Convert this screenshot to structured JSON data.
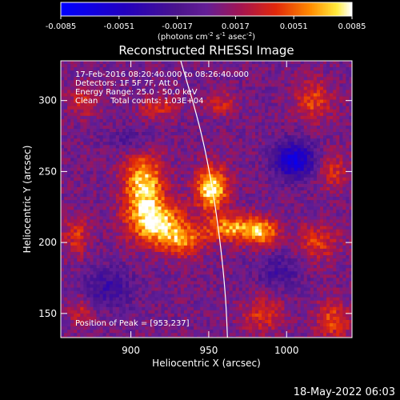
{
  "chart_data": {
    "type": "heatmap",
    "title": "Reconstructed RHESSI Image",
    "xlabel": "Heliocentric X (arcsec)",
    "ylabel": "Heliocentric Y (arcsec)",
    "xlim": [
      855,
      1042
    ],
    "ylim": [
      133,
      328
    ],
    "xticks": [
      900,
      950,
      1000
    ],
    "yticks": [
      150,
      200,
      250,
      300
    ],
    "grid": false,
    "colorbar": {
      "placement": "top",
      "range": [
        -0.0085,
        0.0085
      ],
      "tick_labels": [
        "-0.0085",
        "-0.0051",
        "-0.0017",
        "0.0017",
        "0.0051",
        "0.0085"
      ],
      "unit_parts": [
        "(photons cm",
        "-2",
        " s",
        "-1",
        " asec",
        "-2",
        ")"
      ]
    },
    "annotations": [
      "17-Feb-2016 08:20:40.000 to 08:26:40.000",
      "Detectors: 1F 5F 7F, Att 0",
      "Energy Range: 25.0 - 50.0 keV",
      "Clean     Total counts: 1.03E+04"
    ],
    "peak_label": "Position of Peak = [953,237]",
    "peak": [
      953,
      237
    ],
    "sources": [
      {
        "x": 908,
        "y": 242,
        "amp": 0.0072,
        "sx": 9,
        "sy": 14
      },
      {
        "x": 915,
        "y": 215,
        "amp": 0.0078,
        "sx": 12,
        "sy": 11
      },
      {
        "x": 933,
        "y": 202,
        "amp": 0.005,
        "sx": 10,
        "sy": 8
      },
      {
        "x": 952,
        "y": 238,
        "amp": 0.0085,
        "sx": 7,
        "sy": 11
      },
      {
        "x": 966,
        "y": 210,
        "amp": 0.0062,
        "sx": 12,
        "sy": 7
      },
      {
        "x": 985,
        "y": 207,
        "amp": 0.0052,
        "sx": 7,
        "sy": 7
      },
      {
        "x": 1017,
        "y": 300,
        "amp": 0.004,
        "sx": 9,
        "sy": 10
      },
      {
        "x": 1030,
        "y": 250,
        "amp": 0.0032,
        "sx": 7,
        "sy": 9
      },
      {
        "x": 1020,
        "y": 200,
        "amp": 0.0036,
        "sx": 10,
        "sy": 9
      },
      {
        "x": 1030,
        "y": 145,
        "amp": 0.004,
        "sx": 8,
        "sy": 10
      },
      {
        "x": 985,
        "y": 150,
        "amp": 0.0036,
        "sx": 9,
        "sy": 9
      },
      {
        "x": 865,
        "y": 205,
        "amp": 0.0034,
        "sx": 6,
        "sy": 10
      },
      {
        "x": 868,
        "y": 152,
        "amp": 0.0028,
        "sx": 6,
        "sy": 7
      },
      {
        "x": 870,
        "y": 300,
        "amp": 0.003,
        "sx": 7,
        "sy": 8
      },
      {
        "x": 918,
        "y": 295,
        "amp": 0.0032,
        "sx": 9,
        "sy": 6
      },
      {
        "x": 958,
        "y": 298,
        "amp": 0.003,
        "sx": 7,
        "sy": 6
      },
      {
        "x": 1005,
        "y": 258,
        "amp": -0.007,
        "sx": 9,
        "sy": 9
      },
      {
        "x": 885,
        "y": 168,
        "amp": -0.0032,
        "sx": 12,
        "sy": 10
      },
      {
        "x": 995,
        "y": 180,
        "amp": -0.0025,
        "sx": 10,
        "sy": 9
      },
      {
        "x": 900,
        "y": 272,
        "amp": -0.002,
        "sx": 10,
        "sy": 6
      }
    ],
    "limb": [
      [
        932,
        328
      ],
      [
        945,
        280
      ],
      [
        953,
        235
      ],
      [
        958,
        195
      ],
      [
        961,
        160
      ],
      [
        962,
        133
      ]
    ]
  },
  "footer": {
    "timestamp": "18-May-2022 06:03"
  },
  "colors": {
    "background": "#000000",
    "foreground": "#ffffff"
  }
}
